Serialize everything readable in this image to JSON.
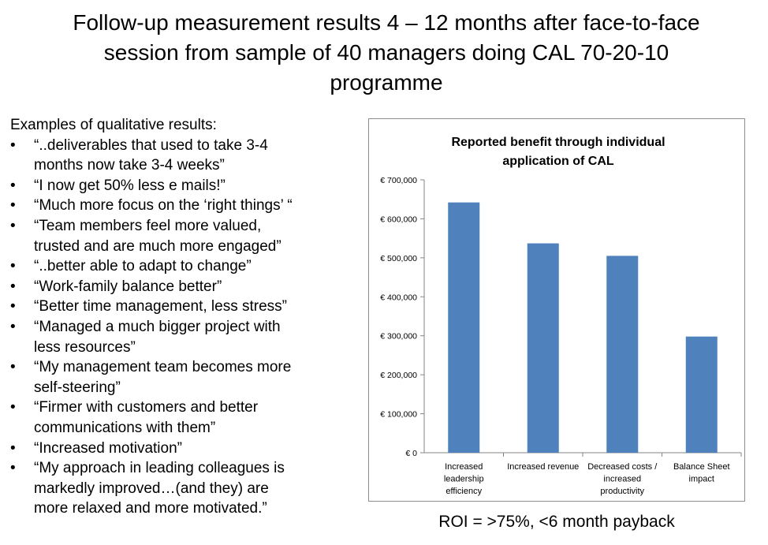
{
  "slide": {
    "title_lines": [
      "Follow-up measurement results 4 – 12 months after face-to-face",
      "session from sample of 40 managers doing CAL 70-20-10",
      "programme"
    ],
    "intro": "Examples of qualitative results:",
    "bullet_symbol": "•",
    "bullets": [
      [
        "“..deliverables that used to take 3-4",
        "months now take 3-4 weeks”"
      ],
      [
        "“I now get 50% less e mails!”"
      ],
      [
        "“Much more focus on the ‘right things’ “"
      ],
      [
        "“Team members feel more valued,",
        "trusted and are much more engaged”"
      ],
      [
        "“..better able to adapt to change”"
      ],
      [
        "“Work-family balance better”"
      ],
      [
        "“Better time management, less stress”"
      ],
      [
        "“Managed a much bigger project with",
        "less resources”"
      ],
      [
        "“My management team becomes more",
        "self-steering”"
      ],
      [
        "“Firmer with customers and better",
        "communications with them”"
      ],
      [
        "“Increased motivation”"
      ],
      [
        "“My approach in leading colleagues is",
        "markedly improved…(and they) are",
        "more relaxed and more motivated.”"
      ]
    ],
    "roi": "ROI = >75%, <6 month payback"
  },
  "chart_data": {
    "type": "bar",
    "title_lines": [
      "Reported benefit through individual",
      "application of CAL"
    ],
    "categories": [
      [
        "Increased",
        "leadership",
        "efficiency"
      ],
      [
        "Increased revenue"
      ],
      [
        "Decreased costs /",
        "increased",
        "productivity"
      ],
      [
        "Balance Sheet",
        "impact"
      ]
    ],
    "values": [
      642000,
      537000,
      505000,
      298000
    ],
    "ylim": [
      0,
      700000
    ],
    "yticks": [
      0,
      100000,
      200000,
      300000,
      400000,
      500000,
      600000,
      700000
    ],
    "ytick_labels": [
      "€ 0",
      "€ 100,000",
      "€ 200,000",
      "€ 300,000",
      "€ 400,000",
      "€ 500,000",
      "€ 600,000",
      "€ 700,000"
    ],
    "bar_color": "#4f81bd",
    "axis_color": "#868686",
    "grid": false,
    "legend": "none"
  }
}
